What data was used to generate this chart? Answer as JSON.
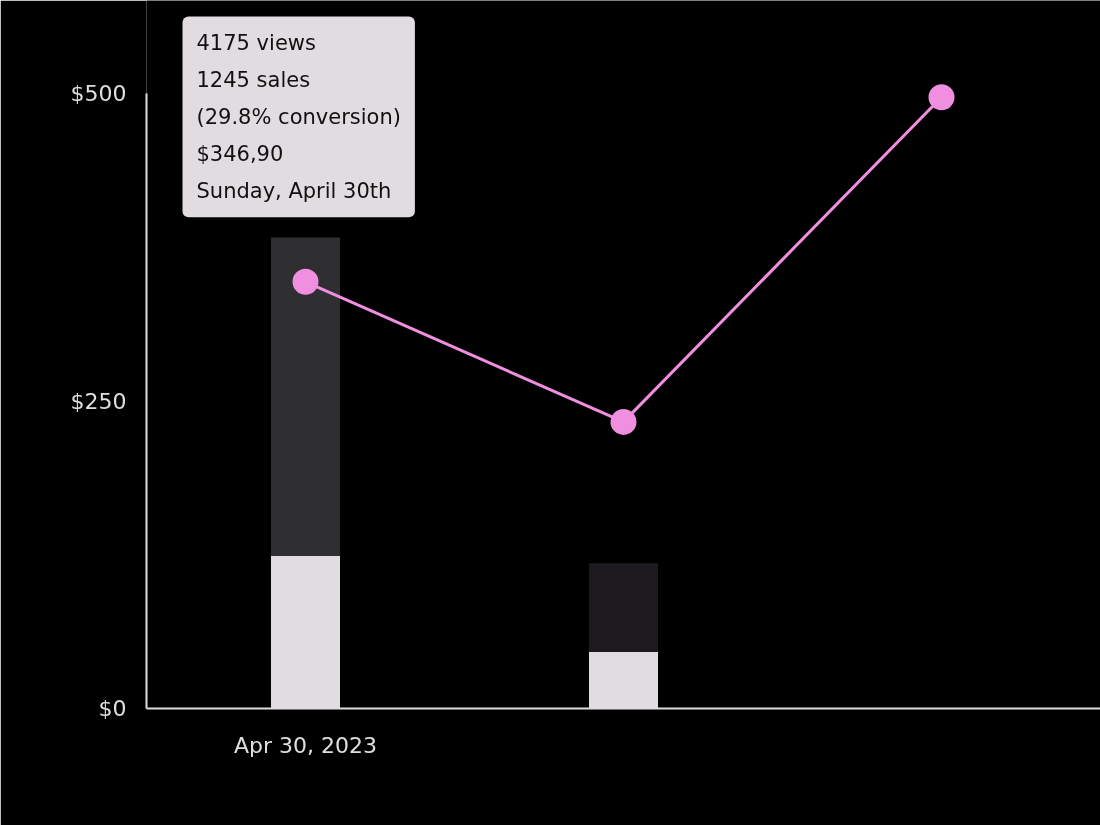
{
  "chart_data": {
    "type": "bar",
    "stacked": true,
    "categories": [
      "Apr 30, 2023",
      null,
      null
    ],
    "series": [
      {
        "colors": [
          "#e0dce0",
          "#e0dce0",
          "#e0dce0"
        ],
        "values": [
          124,
          46,
          null
        ]
      },
      {
        "colors": [
          "#2f2e30",
          "#1c1a1e",
          "#1c1a1e"
        ],
        "values": [
          259,
          72,
          null
        ]
      },
      {
        "type": "line",
        "color": "#f08ee0",
        "marker": "circle",
        "values": [
          346.9,
          233,
          497
        ]
      }
    ],
    "ylim": [
      0,
      500
    ],
    "yticks": [
      {
        "value": 0,
        "label": "$0"
      },
      {
        "value": 250,
        "label": "$250"
      },
      {
        "value": 500,
        "label": "$500"
      }
    ],
    "grid": false,
    "annotations": [
      "4175 views",
      "1245 sales",
      "(29.8% conversion)",
      "$346,90",
      "Sunday, April 30th"
    ]
  }
}
